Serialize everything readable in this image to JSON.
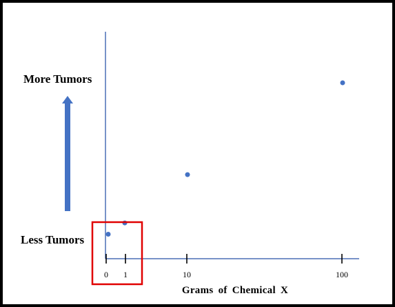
{
  "chart_data": {
    "type": "scatter",
    "title": "",
    "xlabel": "Grams of Chemical X",
    "ylabel": "",
    "y_top_label": "More Tumors",
    "y_bottom_label": "Less Tumors",
    "x_ticks": [
      "0",
      "1",
      "10",
      "100"
    ],
    "x_scale": "categorical",
    "ylim": [
      0,
      100
    ],
    "grid": false,
    "legend": "none",
    "points": [
      {
        "x": "0",
        "y": 6
      },
      {
        "x": "1",
        "y": 13
      },
      {
        "x": "10",
        "y": 43
      },
      {
        "x": "100",
        "y": 100
      }
    ],
    "highlight": {
      "x_range": [
        "0",
        "1"
      ],
      "color": "#e00000"
    },
    "colors": {
      "axis": "#4a6fb5",
      "point": "#4472c4",
      "arrow": "#4472c4",
      "highlight": "#e00000"
    }
  }
}
